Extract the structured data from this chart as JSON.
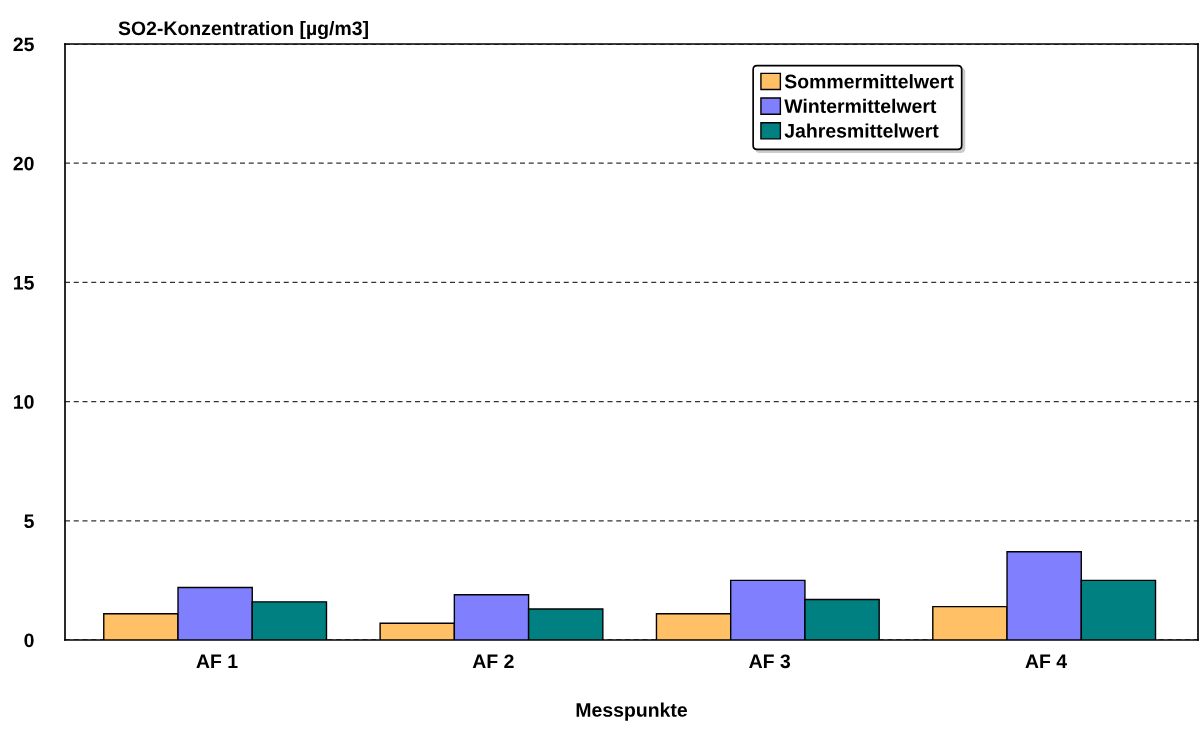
{
  "chart_data": {
    "type": "bar",
    "ylabel": "SO2-Konzentration [µg/m3]",
    "xlabel": "Messpunkte",
    "categories": [
      "AF 1",
      "AF 2",
      "AF 3",
      "AF 4"
    ],
    "series": [
      {
        "name": "Sommermittelwert",
        "color": "#ffc066",
        "values": [
          1.1,
          0.7,
          1.1,
          1.4
        ]
      },
      {
        "name": "Wintermittelwert",
        "color": "#8080ff",
        "values": [
          2.2,
          1.9,
          2.5,
          3.7
        ]
      },
      {
        "name": "Jahresmittelwert",
        "color": "#008080",
        "values": [
          1.6,
          1.3,
          1.7,
          2.5
        ]
      }
    ],
    "ylim": [
      0,
      25
    ],
    "yticks": [
      0,
      5,
      10,
      15,
      20,
      25
    ],
    "grid": "y",
    "legend": "top right"
  }
}
